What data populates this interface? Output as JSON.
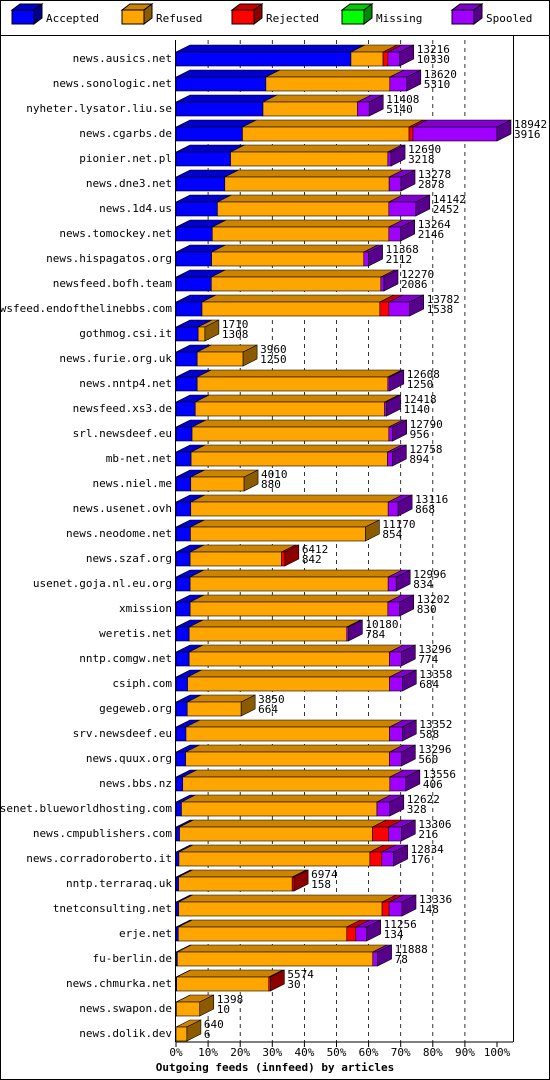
{
  "chart_data": {
    "type": "bar3d_stacked_horizontal",
    "x_label": "Outgoing feeds (innfeed) by articles",
    "categories": [
      "news.ausics.net",
      "news.sonologic.net",
      "nyheter.lysator.liu.se",
      "news.cgarbs.de",
      "pionier.net.pl",
      "news.dne3.net",
      "news.1d4.us",
      "news.tomockey.net",
      "news.hispagatos.org",
      "newsfeed.bofh.team",
      "newsfeed.endofthelinebbs.com",
      "gothmog.csi.it",
      "news.furie.org.uk",
      "news.nntp4.net",
      "newsfeed.xs3.de",
      "srl.newsdeef.eu",
      "mb-net.net",
      "news.niel.me",
      "news.usenet.ovh",
      "news.neodome.net",
      "news.szaf.org",
      "usenet.goja.nl.eu.org",
      "xmission",
      "weretis.net",
      "nntp.comgw.net",
      "csiph.com",
      "gegeweb.org",
      "srv.newsdeef.eu",
      "news.quux.org",
      "news.bbs.nz",
      "usenet.blueworldhosting.com",
      "news.cmpublishers.com",
      "news.corradoroberto.it",
      "nntp.terraraq.uk",
      "tnetconsulting.net",
      "erje.net",
      "fu-berlin.de",
      "news.chmurka.net",
      "news.swapon.de",
      "news.dolik.dev"
    ],
    "series": [
      {
        "name": "Accepted",
        "color": "#0000ff",
        "values": [
          54.5,
          28.0,
          27.1,
          20.7,
          17.0,
          15.2,
          12.9,
          11.3,
          11.1,
          11.0,
          8.1,
          6.9,
          6.6,
          6.6,
          6.0,
          5.0,
          4.7,
          4.6,
          4.6,
          4.5,
          4.4,
          4.4,
          4.4,
          4.1,
          4.1,
          3.6,
          3.5,
          3.1,
          3.0,
          2.1,
          1.7,
          1.1,
          0.9,
          0.8,
          0.8,
          0.7,
          0.4,
          0.2,
          0.1,
          0.0
        ]
      },
      {
        "name": "Refused",
        "color": "#ffa500",
        "values": [
          10.0,
          38.6,
          29.4,
          51.9,
          49.0,
          51.2,
          53.4,
          55.0,
          47.4,
          52.8,
          55.4,
          2.1,
          14.3,
          59.4,
          59.0,
          61.3,
          61.2,
          16.6,
          61.5,
          54.5,
          28.5,
          61.7,
          61.6,
          49.1,
          62.4,
          62.9,
          16.8,
          63.4,
          63.5,
          64.5,
          60.9,
          60.1,
          59.5,
          35.4,
          63.4,
          52.5,
          60.9,
          28.7,
          7.3,
          3.4
        ]
      },
      {
        "name": "Rejected",
        "color": "#ff0000",
        "values": [
          1.5,
          0,
          0,
          1.2,
          0,
          0,
          0,
          0,
          0,
          0,
          2.8,
          0,
          0,
          0,
          0,
          0,
          0,
          0,
          0,
          0,
          1.0,
          0,
          0,
          0,
          0,
          0,
          0,
          0,
          0,
          0,
          0,
          5.0,
          3.7,
          0.6,
          2.2,
          2.8,
          0,
          0.5,
          0,
          0
        ]
      },
      {
        "name": "Missing",
        "color": "#00ff00",
        "values": [
          0,
          0,
          0,
          0,
          0,
          0,
          0,
          0,
          0,
          0,
          0,
          0,
          0,
          0,
          0,
          0,
          0,
          0,
          0,
          0,
          0,
          0,
          0,
          0,
          0,
          0,
          0,
          0,
          0,
          0,
          0,
          0,
          0,
          0,
          0,
          0,
          0,
          0,
          0,
          0
        ]
      },
      {
        "name": "Spooled",
        "color": "#a000ff",
        "values": [
          3.7,
          5.3,
          3.7,
          26.2,
          1.0,
          3.7,
          8.4,
          3.7,
          1.5,
          1.0,
          6.5,
          0,
          0,
          0.6,
          0.6,
          1.2,
          1.5,
          0,
          3.1,
          0,
          0,
          2.5,
          3.7,
          0.5,
          3.7,
          4.0,
          0,
          4.0,
          3.7,
          5.0,
          4.0,
          4.0,
          3.7,
          0,
          4.0,
          3.4,
          1.5,
          0,
          0,
          0
        ]
      }
    ],
    "articles_offered": [
      13216,
      13620,
      11408,
      18942,
      12690,
      13278,
      14142,
      13264,
      11368,
      12270,
      13782,
      1710,
      3960,
      12608,
      12418,
      12790,
      12758,
      4010,
      13116,
      11170,
      6412,
      12996,
      13202,
      10180,
      13296,
      13358,
      3850,
      13352,
      13296,
      13556,
      12622,
      13306,
      12834,
      6974,
      13336,
      11256,
      11888,
      5574,
      1398,
      640
    ],
    "articles_accepted": [
      10330,
      5310,
      5140,
      3916,
      3218,
      2878,
      2452,
      2146,
      2112,
      2086,
      1538,
      1308,
      1250,
      1250,
      1140,
      956,
      894,
      880,
      868,
      854,
      842,
      834,
      830,
      784,
      774,
      684,
      664,
      588,
      560,
      406,
      328,
      216,
      176,
      158,
      148,
      134,
      78,
      30,
      10,
      6
    ],
    "xlim": [
      0,
      100
    ],
    "xticks": [
      {
        "value": 0,
        "label": "0%"
      },
      {
        "value": 10,
        "label": "10%"
      },
      {
        "value": 20,
        "label": "20%"
      },
      {
        "value": 30,
        "label": "30%"
      },
      {
        "value": 40,
        "label": "40%"
      },
      {
        "value": 50,
        "label": "50%"
      },
      {
        "value": 60,
        "label": "60%"
      },
      {
        "value": 70,
        "label": "70%"
      },
      {
        "value": 80,
        "label": "80%"
      },
      {
        "value": 90,
        "label": "90%"
      },
      {
        "value": 100,
        "label": "100%"
      }
    ],
    "grid": true
  }
}
